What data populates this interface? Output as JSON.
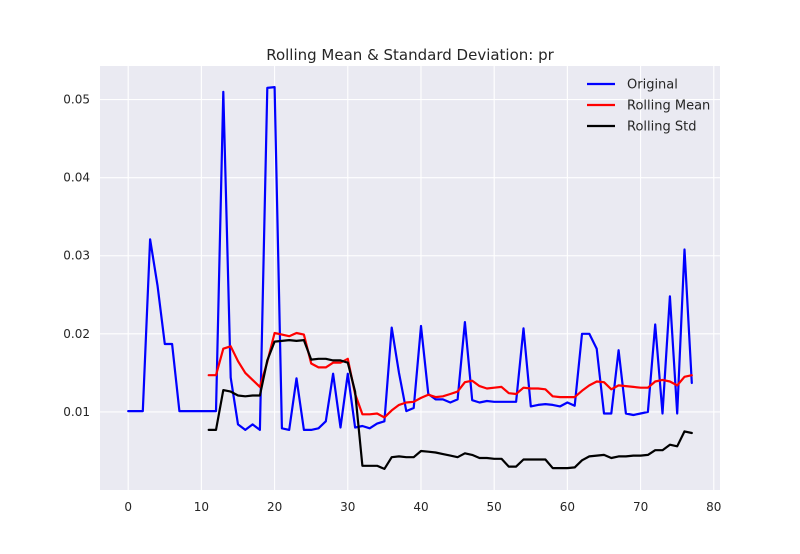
{
  "chart_data": {
    "type": "line",
    "title": "Rolling Mean & Standard Deviation: pr",
    "xlabel": "",
    "ylabel": "",
    "xlim": [
      -3.85,
      80.85
    ],
    "ylim": [
      0.0,
      0.0543
    ],
    "x_ticks": [
      0,
      10,
      20,
      30,
      40,
      50,
      60,
      70,
      80
    ],
    "x_tick_labels": [
      "0",
      "10",
      "20",
      "30",
      "40",
      "50",
      "60",
      "70",
      "80"
    ],
    "y_ticks": [
      0.01,
      0.02,
      0.03,
      0.04,
      0.05
    ],
    "y_tick_labels": [
      "0.01",
      "0.02",
      "0.03",
      "0.04",
      "0.05"
    ],
    "grid": true,
    "legend_position": "top-right",
    "series": [
      {
        "name": "Original",
        "color": "#0000ff",
        "x": [
          0,
          1,
          2,
          3,
          4,
          5,
          6,
          7,
          8,
          9,
          10,
          11,
          12,
          13,
          14,
          15,
          16,
          17,
          18,
          19,
          20,
          21,
          22,
          23,
          24,
          25,
          26,
          27,
          28,
          29,
          30,
          31,
          32,
          33,
          34,
          35,
          36,
          37,
          38,
          39,
          40,
          41,
          42,
          43,
          44,
          45,
          46,
          47,
          48,
          49,
          50,
          51,
          52,
          53,
          54,
          55,
          56,
          57,
          58,
          59,
          60,
          61,
          62,
          63,
          64,
          65,
          66,
          67,
          68,
          69,
          70,
          71,
          72,
          73,
          74,
          75,
          76,
          77
        ],
        "values": [
          0.0101,
          0.0101,
          0.0101,
          0.0321,
          0.0262,
          0.0187,
          0.0187,
          0.0101,
          0.0101,
          0.0101,
          0.0101,
          0.0101,
          0.0101,
          0.051,
          0.0144,
          0.0084,
          0.0077,
          0.0084,
          0.0077,
          0.0515,
          0.0516,
          0.0079,
          0.0077,
          0.0143,
          0.0077,
          0.0077,
          0.0079,
          0.0088,
          0.0149,
          0.008,
          0.0149,
          0.008,
          0.0082,
          0.0079,
          0.0085,
          0.0088,
          0.0208,
          0.015,
          0.0101,
          0.0105,
          0.021,
          0.0123,
          0.0116,
          0.0116,
          0.0112,
          0.0116,
          0.0215,
          0.0115,
          0.0112,
          0.0114,
          0.0113,
          0.0113,
          0.0113,
          0.0113,
          0.0207,
          0.0107,
          0.0109,
          0.011,
          0.0109,
          0.0107,
          0.0112,
          0.0108,
          0.02,
          0.02,
          0.0181,
          0.0098,
          0.0098,
          0.0179,
          0.0098,
          0.0096,
          0.0098,
          0.01,
          0.0212,
          0.0098,
          0.0248,
          0.0098,
          0.0308,
          0.0137
        ]
      },
      {
        "name": "Rolling Mean",
        "color": "#ff0000",
        "x": [
          11,
          12,
          13,
          14,
          15,
          16,
          17,
          18,
          19,
          20,
          21,
          22,
          23,
          24,
          25,
          26,
          27,
          28,
          29,
          30,
          31,
          32,
          33,
          34,
          35,
          36,
          37,
          38,
          39,
          40,
          41,
          42,
          43,
          44,
          45,
          46,
          47,
          48,
          49,
          50,
          51,
          52,
          53,
          54,
          55,
          56,
          57,
          58,
          59,
          60,
          61,
          62,
          63,
          64,
          65,
          66,
          67,
          68,
          69,
          70,
          71,
          72,
          73,
          74,
          75,
          76,
          77
        ],
        "values": [
          0.0147,
          0.0147,
          0.0181,
          0.0184,
          0.0165,
          0.015,
          0.0141,
          0.0132,
          0.0164,
          0.0201,
          0.0199,
          0.0197,
          0.0201,
          0.0199,
          0.0162,
          0.0157,
          0.0157,
          0.0163,
          0.0163,
          0.0168,
          0.0123,
          0.0097,
          0.0097,
          0.0098,
          0.0093,
          0.0102,
          0.0109,
          0.0112,
          0.0113,
          0.0118,
          0.0122,
          0.0119,
          0.012,
          0.0123,
          0.0126,
          0.0138,
          0.014,
          0.0133,
          0.013,
          0.0131,
          0.0132,
          0.0124,
          0.0123,
          0.0131,
          0.013,
          0.013,
          0.0129,
          0.012,
          0.0119,
          0.0119,
          0.0119,
          0.0127,
          0.0134,
          0.0139,
          0.0138,
          0.0129,
          0.0134,
          0.0133,
          0.0132,
          0.0131,
          0.0131,
          0.0139,
          0.0141,
          0.0139,
          0.0134,
          0.0145,
          0.0147
        ]
      },
      {
        "name": "Rolling Std",
        "color": "#000000",
        "x": [
          11,
          12,
          13,
          14,
          15,
          16,
          17,
          18,
          19,
          20,
          21,
          22,
          23,
          24,
          25,
          26,
          27,
          28,
          29,
          30,
          31,
          32,
          33,
          34,
          35,
          36,
          37,
          38,
          39,
          40,
          41,
          42,
          43,
          44,
          45,
          46,
          47,
          48,
          49,
          50,
          51,
          52,
          53,
          54,
          55,
          56,
          57,
          58,
          59,
          60,
          61,
          62,
          63,
          64,
          65,
          66,
          67,
          68,
          69,
          70,
          71,
          72,
          73,
          74,
          75,
          76,
          77
        ],
        "values": [
          0.0077,
          0.0077,
          0.0128,
          0.0126,
          0.0121,
          0.012,
          0.0121,
          0.0121,
          0.0166,
          0.019,
          0.0191,
          0.0192,
          0.0191,
          0.0192,
          0.0167,
          0.0168,
          0.0168,
          0.0166,
          0.0166,
          0.0163,
          0.0126,
          0.0031,
          0.0031,
          0.0031,
          0.0027,
          0.0042,
          0.0043,
          0.0042,
          0.0042,
          0.005,
          0.0049,
          0.0048,
          0.0046,
          0.0044,
          0.0042,
          0.0047,
          0.0045,
          0.0041,
          0.0041,
          0.004,
          0.004,
          0.003,
          0.003,
          0.0039,
          0.0039,
          0.0039,
          0.0039,
          0.0028,
          0.0028,
          0.0028,
          0.0029,
          0.0038,
          0.0043,
          0.0044,
          0.0045,
          0.0041,
          0.0043,
          0.0043,
          0.0044,
          0.0044,
          0.0045,
          0.0051,
          0.0051,
          0.0058,
          0.0056,
          0.0075,
          0.0073
        ]
      }
    ]
  }
}
